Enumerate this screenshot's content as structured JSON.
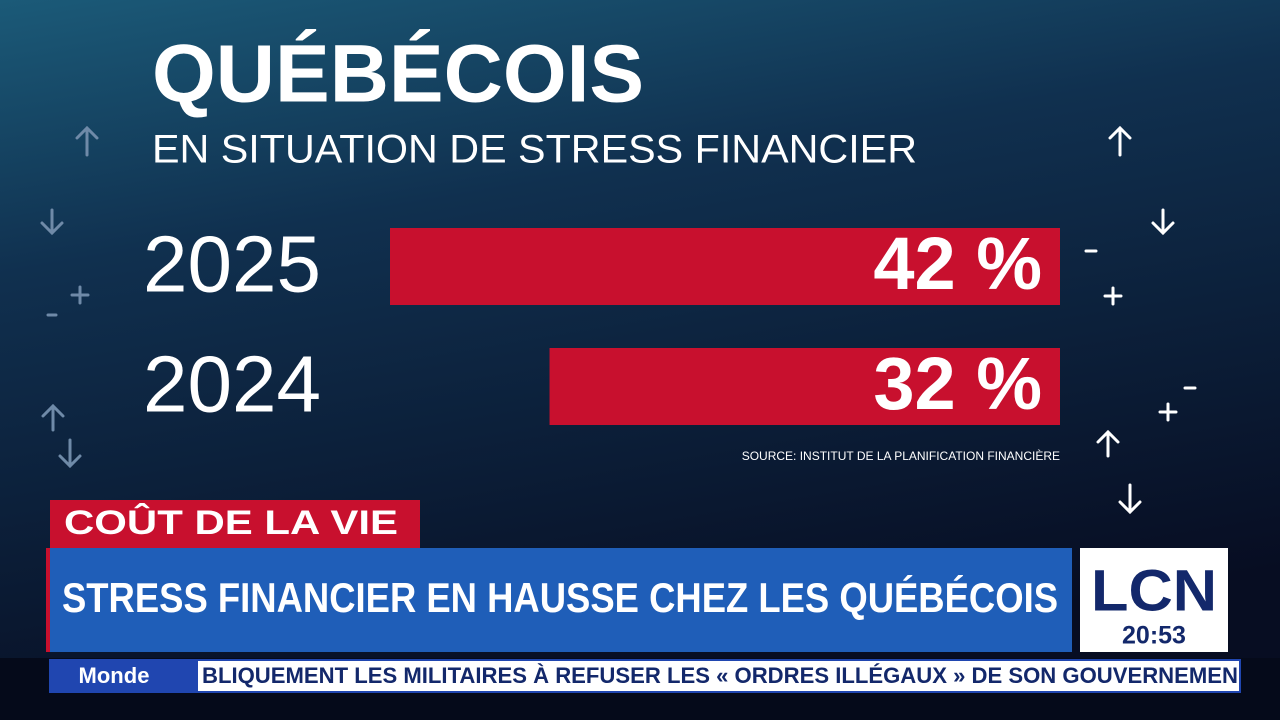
{
  "chart_data": {
    "type": "bar",
    "orientation": "horizontal",
    "title": "QUÉBÉCOIS",
    "subtitle": "EN SITUATION DE STRESS FINANCIER",
    "categories": [
      "2025",
      "2024"
    ],
    "values": [
      42,
      32
    ],
    "value_labels": [
      "42 %",
      "32 %"
    ],
    "color": "#c8102e",
    "source": "SOURCE: INSTITUT DE LA PLANIFICATION FINANCIÈRE"
  },
  "banner": {
    "tag": "COÛT DE LA VIE",
    "headline": "STRESS FINANCIER EN HAUSSE CHEZ LES QUÉBÉCOIS"
  },
  "logo": {
    "name": "LCN",
    "time": "20:53"
  },
  "ticker": {
    "section": "Monde",
    "text": "BLIQUEMENT LES MILITAIRES À REFUSER LES « ORDRES ILLÉGAUX » DE SON GOUVERNEMEN"
  }
}
